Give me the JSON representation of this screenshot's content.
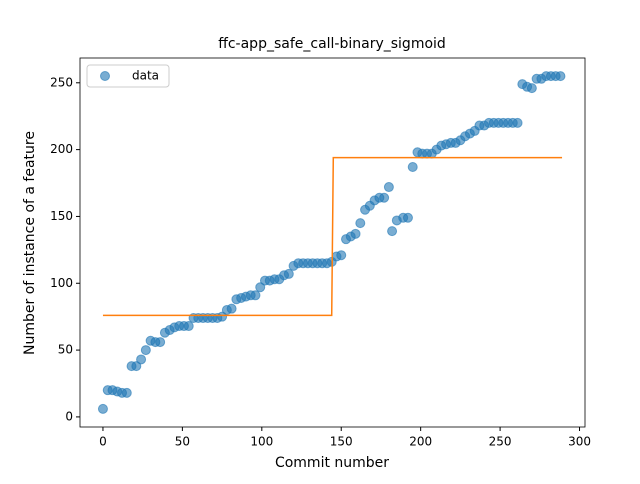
{
  "chart_data": {
    "type": "scatter-line",
    "title": "ffc-app_safe_call-binary_sigmoid",
    "x_label": "Commit number",
    "y_label": "Number of instance of a feature",
    "xlim": [
      -14.45,
      303.45
    ],
    "ylim": [
      -7.55,
      268.55
    ],
    "xticks": [
      0,
      50,
      100,
      150,
      200,
      250,
      300
    ],
    "yticks": [
      0,
      50,
      100,
      150,
      200,
      250
    ],
    "legend": "upper left",
    "series": [
      {
        "name": "data",
        "kind": "scatter",
        "color": "#1f77b4",
        "x": [
          0,
          3,
          6,
          9,
          12,
          15,
          18,
          21,
          24,
          27,
          30,
          33,
          36,
          39,
          42,
          45,
          48,
          51,
          54,
          57,
          60,
          63,
          66,
          69,
          72,
          75,
          78,
          81,
          84,
          87,
          90,
          93,
          96,
          99,
          102,
          105,
          108,
          111,
          114,
          117,
          120,
          123,
          126,
          129,
          132,
          135,
          138,
          141,
          144,
          147,
          150,
          153,
          156,
          159,
          162,
          165,
          168,
          171,
          174,
          177,
          180,
          182,
          185,
          189,
          192,
          195,
          198,
          201,
          204,
          207,
          210,
          213,
          216,
          219,
          222,
          225,
          228,
          231,
          234,
          237,
          240,
          243,
          246,
          249,
          252,
          255,
          258,
          261,
          264,
          267,
          270,
          273,
          276,
          279,
          282,
          285,
          288
        ],
        "values": [
          6,
          20,
          20,
          19,
          18,
          18,
          38,
          38,
          43,
          50,
          57,
          56,
          56,
          63,
          65,
          67,
          68,
          68,
          68,
          74,
          74,
          74,
          74,
          74,
          74,
          75,
          80,
          81,
          88,
          89,
          90,
          91,
          91,
          97,
          102,
          102,
          103,
          103,
          106,
          107,
          113,
          115,
          115,
          115,
          115,
          115,
          115,
          115,
          116,
          120,
          121,
          133,
          135,
          137,
          145,
          155,
          158,
          162,
          164,
          164,
          172,
          139,
          147,
          149,
          149,
          187,
          198,
          197,
          197,
          197,
          200,
          203,
          204,
          205,
          205,
          207,
          210,
          212,
          214,
          218,
          218,
          220,
          220,
          220,
          220,
          220,
          220,
          220,
          249,
          247,
          246,
          253,
          253,
          255,
          255,
          255,
          255
        ]
      },
      {
        "kind": "line",
        "color": "#ff7f0e",
        "x": [
          0,
          144,
          145,
          289
        ],
        "values": [
          76,
          76,
          194,
          194
        ]
      }
    ]
  }
}
